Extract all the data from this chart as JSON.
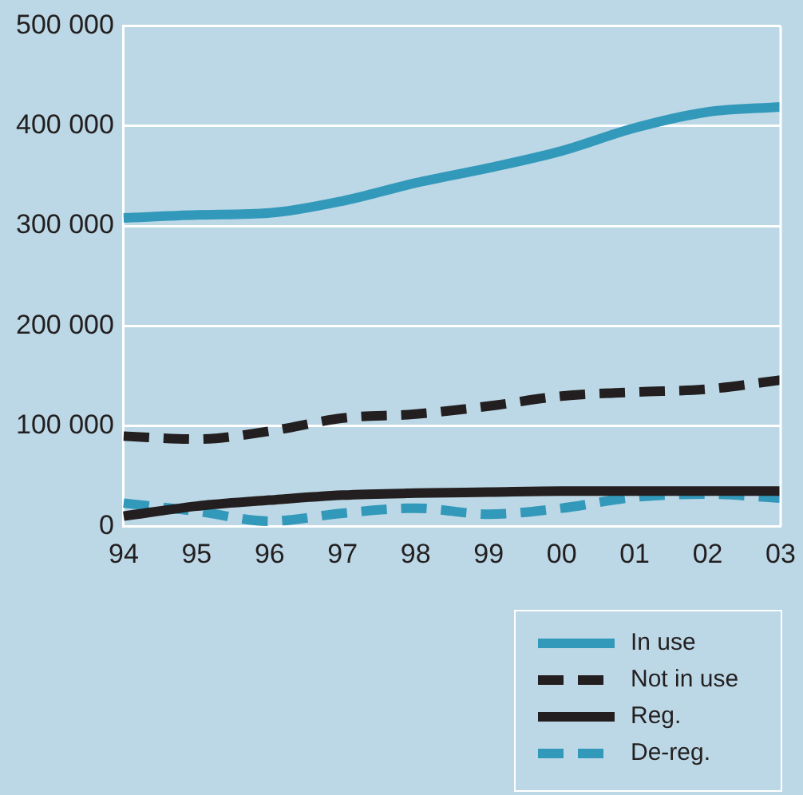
{
  "chart_data": {
    "type": "line",
    "categories": [
      "94",
      "95",
      "96",
      "97",
      "98",
      "99",
      "00",
      "01",
      "02",
      "03"
    ],
    "series": [
      {
        "name": "In use",
        "color": "#3399bb",
        "line_style": "solid",
        "values": [
          308000,
          311000,
          313000,
          325000,
          343000,
          358000,
          375000,
          398000,
          414000,
          419000
        ]
      },
      {
        "name": "Not in use",
        "color": "#231f20",
        "line_style": "dashed",
        "values": [
          90000,
          87000,
          95000,
          108000,
          112000,
          120000,
          130000,
          134000,
          137000,
          146000
        ]
      },
      {
        "name": "Reg.",
        "color": "#231f20",
        "line_style": "solid",
        "values": [
          10000,
          20000,
          26000,
          31000,
          33000,
          34000,
          35000,
          35000,
          35000,
          35000
        ]
      },
      {
        "name": "De-reg.",
        "color": "#3399bb",
        "line_style": "dashed",
        "values": [
          23000,
          15000,
          5000,
          13000,
          18000,
          12000,
          18000,
          29000,
          32000,
          28000
        ]
      }
    ],
    "ylim": [
      0,
      500000
    ],
    "yticks": [
      {
        "value": 0,
        "label": "0"
      },
      {
        "value": 100000,
        "label": "100 000"
      },
      {
        "value": 200000,
        "label": "200 000"
      },
      {
        "value": 300000,
        "label": "300 000"
      },
      {
        "value": 400000,
        "label": "400 000"
      },
      {
        "value": 500000,
        "label": "500 000"
      }
    ],
    "grid": "y",
    "legend": "bottom right",
    "marker": "none"
  }
}
